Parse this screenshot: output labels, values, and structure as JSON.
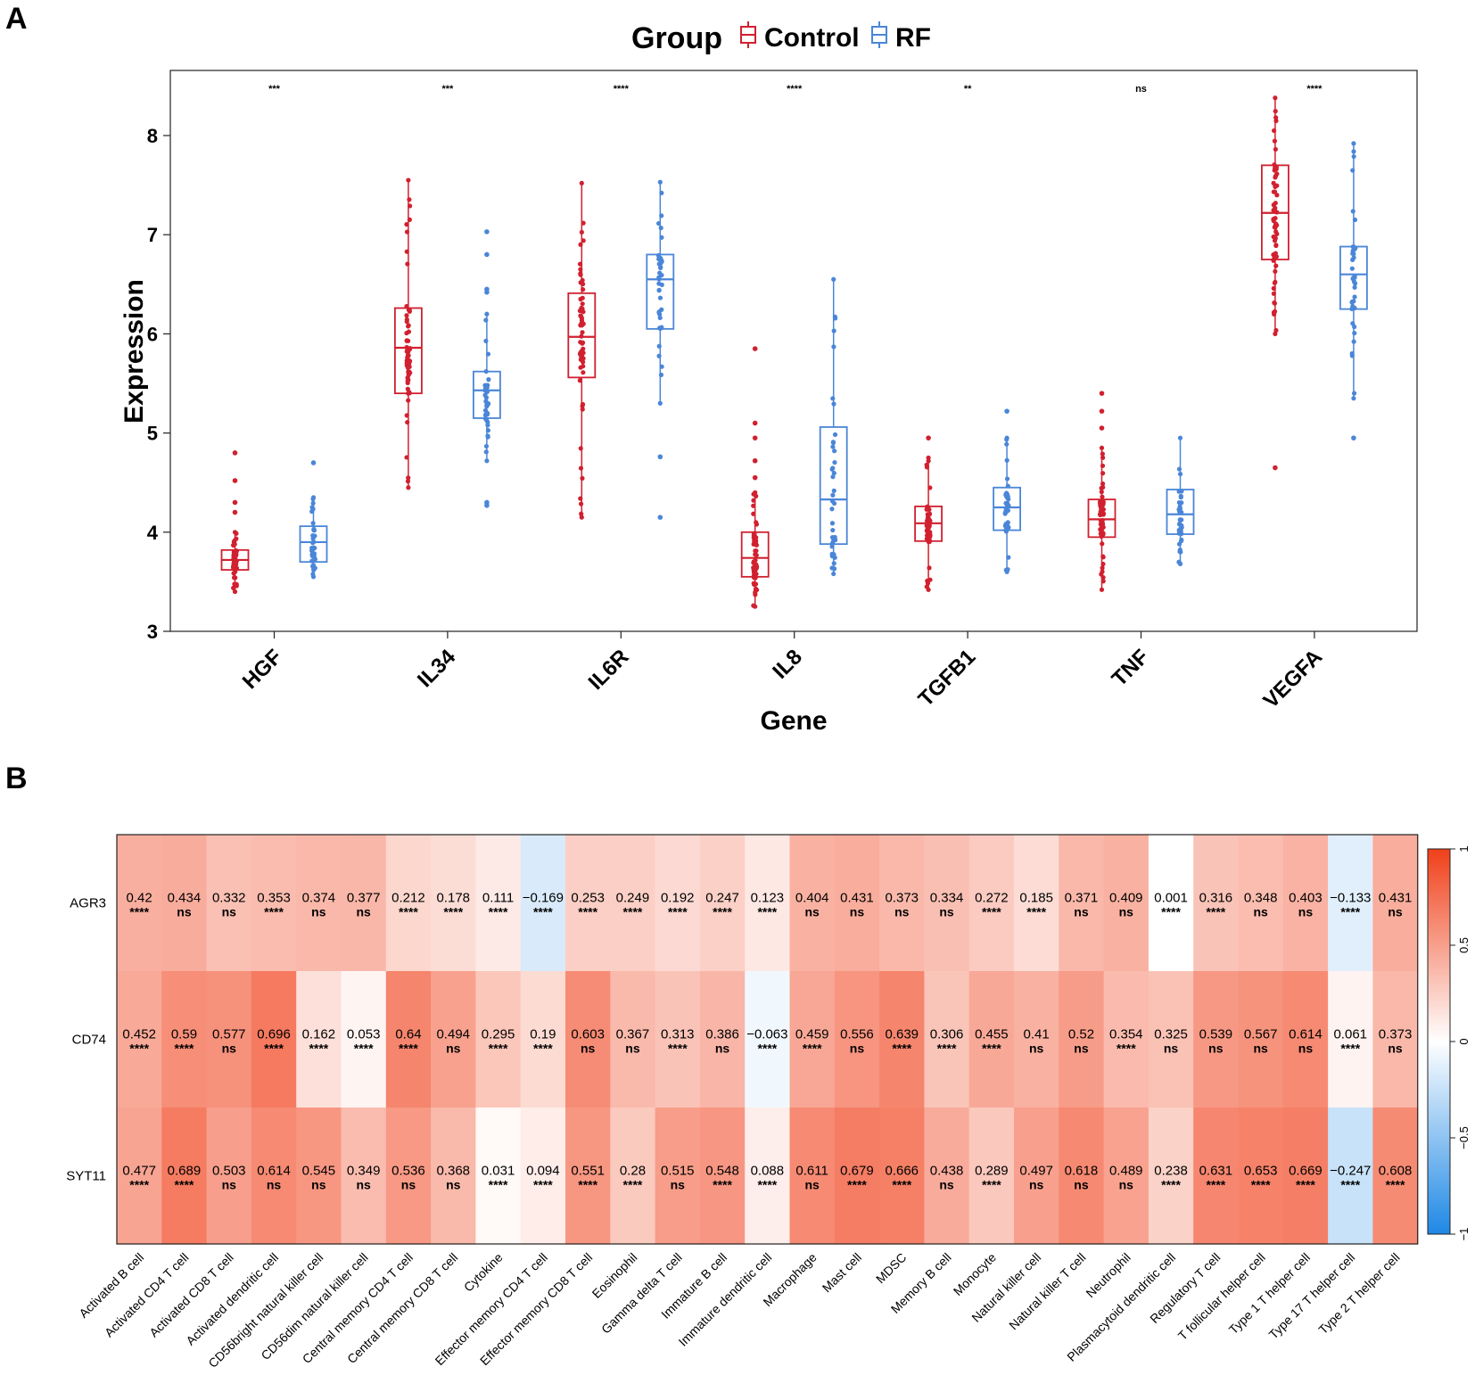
{
  "panel_labels": [
    "A",
    "B"
  ],
  "chart_data": [
    {
      "type": "box",
      "title": "Group",
      "legend": [
        {
          "label": "Control",
          "color": "#D1202F"
        },
        {
          "label": "RF",
          "color": "#4A86D8"
        }
      ],
      "xlabel": "Gene",
      "ylabel": "Expression",
      "ylim": [
        3,
        8.5
      ],
      "yticks": [
        3,
        4,
        5,
        6,
        7,
        8
      ],
      "categories": [
        "HGF",
        "IL34",
        "IL6R",
        "IL8",
        "TGFB1",
        "TNF",
        "VEGFA"
      ],
      "significance": [
        "***",
        "***",
        "****",
        "****",
        "**",
        "ns",
        "****"
      ],
      "series": [
        {
          "name": "Control",
          "boxes": [
            {
              "min": 3.4,
              "q1": 3.62,
              "median": 3.72,
              "q3": 3.82,
              "max": 4.0,
              "outliers": [
                4.2,
                4.3,
                4.52,
                4.8
              ]
            },
            {
              "min": 4.45,
              "q1": 5.4,
              "median": 5.86,
              "q3": 6.26,
              "max": 7.55,
              "outliers": []
            },
            {
              "min": 4.15,
              "q1": 5.56,
              "median": 5.97,
              "q3": 6.41,
              "max": 7.52,
              "outliers": []
            },
            {
              "min": 3.25,
              "q1": 3.55,
              "median": 3.74,
              "q3": 4.0,
              "max": 4.4,
              "outliers": [
                4.55,
                4.72,
                4.95,
                5.1,
                5.85
              ]
            },
            {
              "min": 3.42,
              "q1": 3.91,
              "median": 4.09,
              "q3": 4.26,
              "max": 4.75,
              "outliers": [
                4.95
              ]
            },
            {
              "min": 3.42,
              "q1": 3.95,
              "median": 4.13,
              "q3": 4.33,
              "max": 4.85,
              "outliers": [
                5.05,
                5.22,
                5.4
              ]
            },
            {
              "min": 6.0,
              "q1": 6.75,
              "median": 7.22,
              "q3": 7.7,
              "max": 8.38,
              "outliers": [
                4.65
              ]
            }
          ]
        },
        {
          "name": "RF",
          "boxes": [
            {
              "min": 3.55,
              "q1": 3.7,
              "median": 3.9,
              "q3": 4.06,
              "max": 4.35,
              "outliers": [
                4.7
              ]
            },
            {
              "min": 4.72,
              "q1": 5.15,
              "median": 5.43,
              "q3": 5.62,
              "max": 6.2,
              "outliers": [
                4.27,
                4.3,
                6.42,
                6.45,
                6.8,
                7.03
              ]
            },
            {
              "min": 5.3,
              "q1": 6.05,
              "median": 6.55,
              "q3": 6.8,
              "max": 7.53,
              "outliers": [
                4.15,
                4.76
              ]
            },
            {
              "min": 3.58,
              "q1": 3.88,
              "median": 4.33,
              "q3": 5.06,
              "max": 6.55,
              "outliers": []
            },
            {
              "min": 3.6,
              "q1": 4.02,
              "median": 4.25,
              "q3": 4.45,
              "max": 4.95,
              "outliers": [
                5.22
              ]
            },
            {
              "min": 3.68,
              "q1": 3.98,
              "median": 4.18,
              "q3": 4.43,
              "max": 4.95,
              "outliers": []
            },
            {
              "min": 5.35,
              "q1": 6.25,
              "median": 6.6,
              "q3": 6.88,
              "max": 7.92,
              "outliers": [
                4.95
              ]
            }
          ]
        }
      ]
    },
    {
      "type": "heatmap",
      "rows": [
        "AGR3",
        "CD74",
        "SYT11"
      ],
      "columns": [
        "Activated B cell",
        "Activated CD4 T cell",
        "Activated CD8 T cell",
        "Activated dendritic cell",
        "CD56bright natural killer cell",
        "CD56dim natural killer cell",
        "Central memory CD4 T cell",
        "Central memory CD8 T cell",
        "Cytokine",
        "Effector memory CD4 T cell",
        "Effector memory CD8 T cell",
        "Eosinophil",
        "Gamma delta T cell",
        "Immature  B cell",
        "Immature dendritic cell",
        "Macrophage",
        "Mast cell",
        "MDSC",
        "Memory B cell",
        "Monocyte",
        "Natural killer cell",
        "Natural killer T cell",
        "Neutrophil",
        "Plasmacytoid dendritic cell",
        "Regulatory T cell",
        "T follicular helper cell",
        "Type 1 T helper cell",
        "Type 17 T helper cell",
        "Type 2 T helper cell"
      ],
      "values": [
        [
          0.42,
          0.434,
          0.332,
          0.353,
          0.374,
          0.377,
          0.212,
          0.178,
          0.111,
          -0.169,
          0.253,
          0.249,
          0.192,
          0.247,
          0.123,
          0.404,
          0.431,
          0.373,
          0.334,
          0.272,
          0.185,
          0.371,
          0.409,
          0.001,
          0.316,
          0.348,
          0.403,
          -0.133,
          0.431
        ],
        [
          0.452,
          0.59,
          0.577,
          0.696,
          0.162,
          0.053,
          0.64,
          0.494,
          0.295,
          0.19,
          0.603,
          0.367,
          0.313,
          0.386,
          -0.063,
          0.459,
          0.556,
          0.639,
          0.306,
          0.455,
          0.41,
          0.52,
          0.354,
          0.325,
          0.539,
          0.567,
          0.614,
          0.061,
          0.373
        ],
        [
          0.477,
          0.689,
          0.503,
          0.614,
          0.545,
          0.349,
          0.536,
          0.368,
          0.031,
          0.094,
          0.551,
          0.28,
          0.515,
          0.548,
          0.088,
          0.611,
          0.679,
          0.666,
          0.438,
          0.289,
          0.497,
          0.618,
          0.489,
          0.238,
          0.631,
          0.653,
          0.669,
          -0.247,
          0.608
        ]
      ],
      "labels": [
        [
          "0.42",
          "0.434",
          "0.332",
          "0.353",
          "0.374",
          "0.377",
          "0.212",
          "0.178",
          "0.111",
          "−0.169",
          "0.253",
          "0.249",
          "0.192",
          "0.247",
          "0.123",
          "0.404",
          "0.431",
          "0.373",
          "0.334",
          "0.272",
          "0.185",
          "0.371",
          "0.409",
          "0.001",
          "0.316",
          "0.348",
          "0.403",
          "−0.133",
          "0.431"
        ],
        [
          "0.452",
          "0.59",
          "0.577",
          "0.696",
          "0.162",
          "0.053",
          "0.64",
          "0.494",
          "0.295",
          "0.19",
          "0.603",
          "0.367",
          "0.313",
          "0.386",
          "−0.063",
          "0.459",
          "0.556",
          "0.639",
          "0.306",
          "0.455",
          "0.41",
          "0.52",
          "0.354",
          "0.325",
          "0.539",
          "0.567",
          "0.614",
          "0.061",
          "0.373"
        ],
        [
          "0.477",
          "0.689",
          "0.503",
          "0.614",
          "0.545",
          "0.349",
          "0.536",
          "0.368",
          "0.031",
          "0.094",
          "0.551",
          "0.28",
          "0.515",
          "0.548",
          "0.088",
          "0.611",
          "0.679",
          "0.666",
          "0.438",
          "0.289",
          "0.497",
          "0.618",
          "0.489",
          "0.238",
          "0.631",
          "0.653",
          "0.669",
          "−0.247",
          "0.608"
        ]
      ],
      "significance": [
        [
          "****",
          "ns",
          "ns",
          "****",
          "ns",
          "ns",
          "****",
          "****",
          "****",
          "****",
          "****",
          "****",
          "****",
          "****",
          "****",
          "ns",
          "ns",
          "ns",
          "ns",
          "****",
          "****",
          "ns",
          "ns",
          "****",
          "****",
          "ns",
          "ns",
          "****",
          "ns"
        ],
        [
          "****",
          "****",
          "ns",
          "****",
          "****",
          "****",
          "****",
          "ns",
          "****",
          "****",
          "ns",
          "ns",
          "****",
          "ns",
          "****",
          "****",
          "ns",
          "****",
          "****",
          "****",
          "ns",
          "ns",
          "****",
          "ns",
          "ns",
          "ns",
          "ns",
          "****",
          "ns"
        ],
        [
          "****",
          "****",
          "ns",
          "ns",
          "ns",
          "ns",
          "ns",
          "ns",
          "****",
          "****",
          "****",
          "****",
          "ns",
          "****",
          "****",
          "ns",
          "****",
          "****",
          "ns",
          "****",
          "ns",
          "ns",
          "ns",
          "****",
          "****",
          "****",
          "****",
          "****",
          "****"
        ]
      ],
      "colorbar": {
        "range": [
          -1,
          1
        ],
        "ticks": [
          "1",
          "0.5",
          "0",
          "−0.5",
          "−1"
        ],
        "low_color": "#1E88E5",
        "mid_color": "#FFFFFF",
        "high_color": "#F0401A"
      }
    }
  ]
}
